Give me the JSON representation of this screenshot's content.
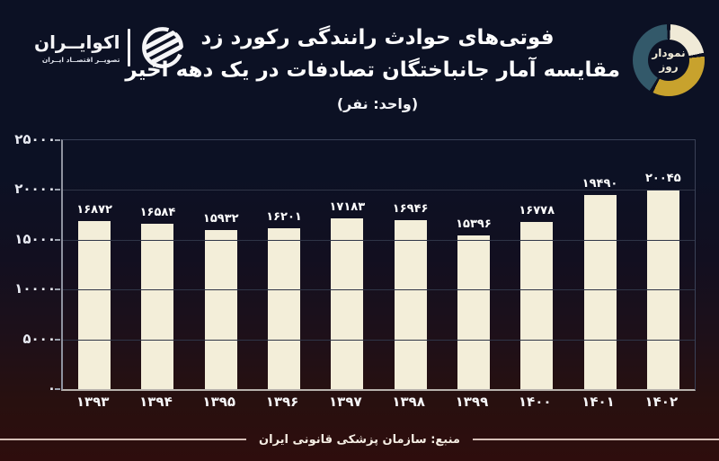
{
  "brand": {
    "name": "اکوایــران",
    "tagline": "تصویــر اقتصــاد ایــران"
  },
  "badge": {
    "line1": "نمودار",
    "line2": "روز"
  },
  "header": {
    "title_line1": "فوتی‌های حوادث رانندگی رکورد زد",
    "title_line2": "مقایسه آمار جانباختگان تصادفات در یک دهه اخیر",
    "unit": "(واحد: نفر)"
  },
  "footer": {
    "source": "منبع: سازمان پزشکی قانونی ایران"
  },
  "colors": {
    "background_top": "#0c1124",
    "background_bottom": "#2e0d0d",
    "bar": "#f3eed9",
    "gridline": "#2f3547",
    "axis": "#9aa0ac",
    "badge_teal": "#33596a",
    "badge_cream": "#f0ead7",
    "badge_gold": "#c8a22d",
    "footer_line": "#d5bfb7"
  },
  "chart_data": {
    "type": "bar",
    "title": "فوتی‌های حوادث رانندگی رکورد زد",
    "subtitle": "مقایسه آمار جانباختگان تصادفات در یک دهه اخیر",
    "unit_label": "(واحد: نفر)",
    "categories": [
      "۱۳۹۳",
      "۱۳۹۴",
      "۱۳۹۵",
      "۱۳۹۶",
      "۱۳۹۷",
      "۱۳۹۸",
      "۱۳۹۹",
      "۱۴۰۰",
      "۱۴۰۱",
      "۱۴۰۲"
    ],
    "values": [
      16872,
      16584,
      15932,
      16201,
      17183,
      16946,
      15396,
      16778,
      19490,
      20045
    ],
    "value_labels": [
      "۱۶۸۷۲",
      "۱۶۵۸۴",
      "۱۵۹۳۲",
      "۱۶۲۰۱",
      "۱۷۱۸۳",
      "۱۶۹۴۶",
      "۱۵۳۹۶",
      "۱۶۷۷۸",
      "۱۹۴۹۰",
      "۲۰۰۴۵"
    ],
    "ylim": [
      0,
      25000
    ],
    "yticks": [
      {
        "value": 25000,
        "label": "۲۵۰۰۰"
      },
      {
        "value": 20000,
        "label": "۲۰۰۰۰"
      },
      {
        "value": 15000,
        "label": "۱۵۰۰۰"
      },
      {
        "value": 10000,
        "label": "۱۰۰۰۰"
      },
      {
        "value": 5000,
        "label": "۵۰۰۰"
      },
      {
        "value": 0,
        "label": "۰"
      }
    ],
    "grid": "horizontal",
    "legend": "none",
    "source": "منبع: سازمان پزشکی قانونی ایران"
  }
}
